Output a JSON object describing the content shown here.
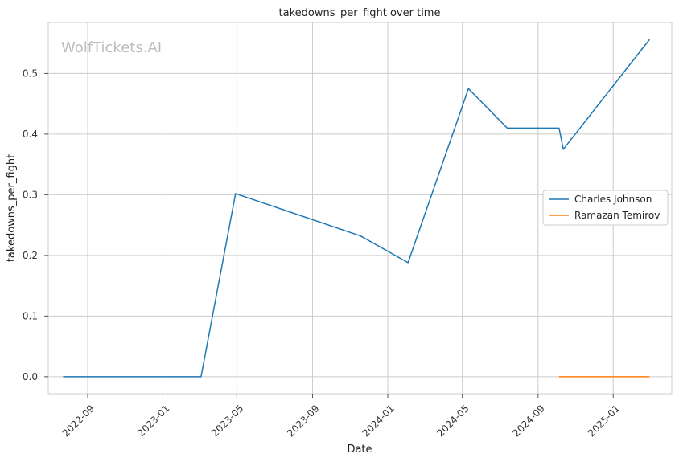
{
  "chart_data": {
    "type": "line",
    "title": "takedowns_per_fight over time",
    "xlabel": "Date",
    "ylabel": "takedowns_per_fight",
    "watermark": "WolfTickets.AI",
    "x_ticks": [
      "2022-09",
      "2023-01",
      "2023-05",
      "2023-09",
      "2024-01",
      "2024-05",
      "2024-09",
      "2025-01"
    ],
    "y_ticks": [
      "0.0",
      "0.1",
      "0.2",
      "0.3",
      "0.4",
      "0.5"
    ],
    "xlim": [
      "2022-06-29",
      "2025-04-06"
    ],
    "ylim": [
      -0.028,
      0.584
    ],
    "grid": true,
    "legend_position": "right",
    "series": [
      {
        "name": "Charles Johnson",
        "color": "#1f77b4",
        "points": [
          {
            "x": "2022-07-23",
            "y": 0.0
          },
          {
            "x": "2023-03-04",
            "y": 0.0
          },
          {
            "x": "2023-04-29",
            "y": 0.302
          },
          {
            "x": "2023-11-18",
            "y": 0.232
          },
          {
            "x": "2024-02-03",
            "y": 0.188
          },
          {
            "x": "2024-05-11",
            "y": 0.475
          },
          {
            "x": "2024-07-13",
            "y": 0.41
          },
          {
            "x": "2024-10-05",
            "y": 0.41
          },
          {
            "x": "2024-10-12",
            "y": 0.375
          },
          {
            "x": "2025-03-01",
            "y": 0.556
          }
        ]
      },
      {
        "name": "Ramazan Temirov",
        "color": "#ff7f0e",
        "points": [
          {
            "x": "2024-10-05",
            "y": 0.0
          },
          {
            "x": "2025-03-01",
            "y": 0.0
          }
        ]
      }
    ]
  }
}
